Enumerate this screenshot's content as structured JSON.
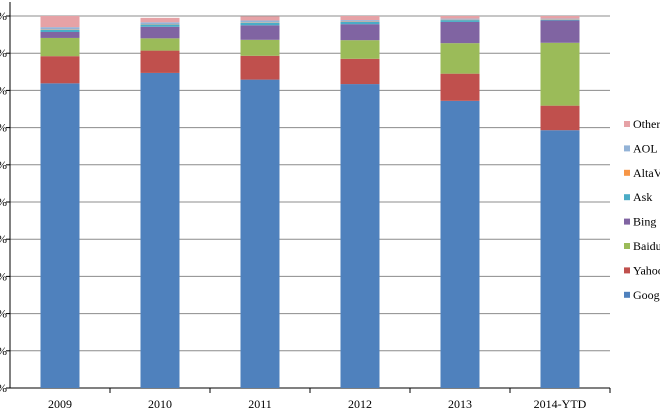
{
  "chart_data": {
    "type": "bar",
    "stacked": true,
    "categories": [
      "2009",
      "2010",
      "2011",
      "2012",
      "2013",
      "2014-YTD"
    ],
    "ylim": [
      0,
      100
    ],
    "ytick_labels": [
      "%",
      "%",
      "%",
      "%",
      "%",
      "%",
      "%",
      "%",
      "%",
      "%",
      "%"
    ],
    "grid": true,
    "legend_position": "right",
    "series": [
      {
        "name": "Goog",
        "color": "#4f81bd",
        "values": [
          81.9,
          84.7,
          82.9,
          81.7,
          77.2,
          69.3
        ]
      },
      {
        "name": "Yahoo",
        "color": "#c0504d",
        "values": [
          7.3,
          6.0,
          6.4,
          6.8,
          7.3,
          6.6
        ]
      },
      {
        "name": "Baidu",
        "color": "#9bbb59",
        "values": [
          4.9,
          3.3,
          4.3,
          5.0,
          8.2,
          16.9
        ]
      },
      {
        "name": "Bing",
        "color": "#8064a2",
        "values": [
          1.6,
          3.1,
          3.9,
          4.3,
          5.7,
          6.0
        ]
      },
      {
        "name": "Ask",
        "color": "#4bacc6",
        "values": [
          0.6,
          0.6,
          0.7,
          0.6,
          0.5,
          0.2
        ]
      },
      {
        "name": "AltaV",
        "color": "#f79646",
        "values": [
          0.1,
          0.1,
          0.1,
          0.1,
          0.1,
          0.1
        ]
      },
      {
        "name": "AOL",
        "color": "#93b3d7",
        "values": [
          0.6,
          0.5,
          0.5,
          0.4,
          0.3,
          0.2
        ]
      },
      {
        "name": "Other",
        "color": "#e6a2a6",
        "values": [
          3.0,
          1.2,
          1.1,
          1.1,
          0.7,
          0.7
        ]
      }
    ],
    "legend_order": [
      "Other",
      "AOL",
      "AltaV",
      "Ask",
      "Bing",
      "Baidu",
      "Yahoo",
      "Goog"
    ]
  }
}
